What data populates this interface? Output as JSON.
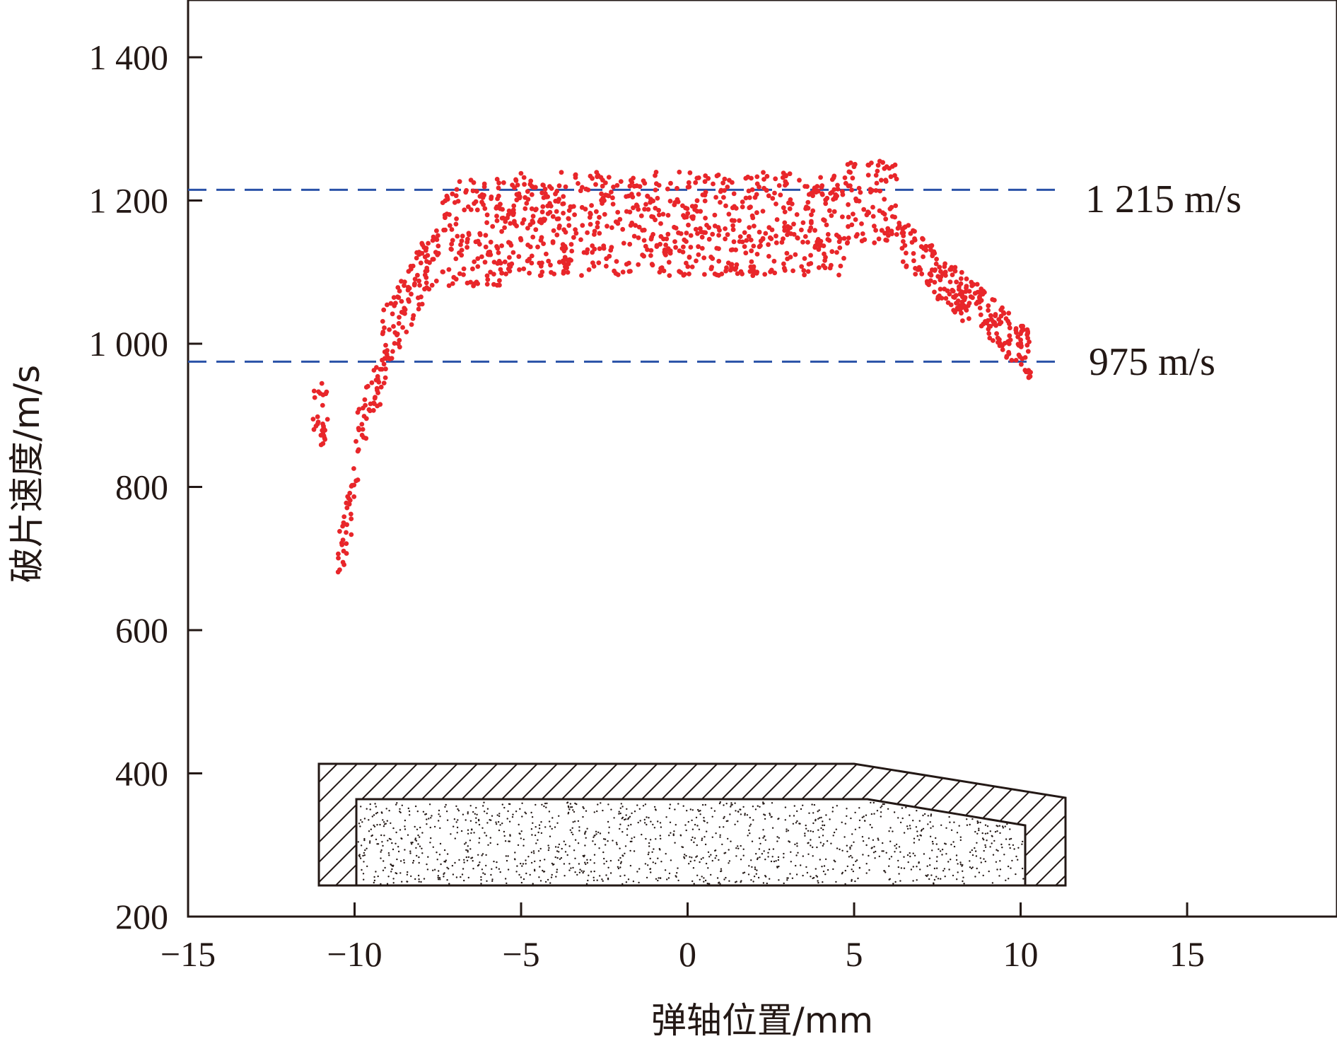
{
  "chart_data": {
    "type": "scatter",
    "title": "",
    "xlabel": "弹轴位置/mm",
    "ylabel": "破片速度/m/s",
    "xlim": [
      -15,
      19.5
    ],
    "ylim": [
      200,
      1480
    ],
    "xticks": [
      -15,
      -10,
      -5,
      0,
      5,
      10,
      15
    ],
    "xtick_labels": [
      "−15",
      "−10",
      "−5",
      "0",
      "5",
      "10",
      "15"
    ],
    "yticks": [
      200,
      400,
      600,
      800,
      1000,
      1200,
      1400
    ],
    "ytick_labels": [
      "200",
      "400",
      "600",
      "800",
      "1 000",
      "1 200",
      "1 400"
    ],
    "grid": false,
    "point_color": "#e8262a",
    "reference_lines": [
      {
        "value": 1215,
        "label": "1 215 m/s",
        "color": "#2a52a8"
      },
      {
        "value": 975,
        "label": "975 m/s",
        "color": "#2a52a8"
      }
    ],
    "point_groups": [
      {
        "x_range": [
          -11.3,
          -10.8
        ],
        "y_range": [
          850,
          945
        ],
        "count": 28
      },
      {
        "x_range": [
          -10.5,
          -9.9
        ],
        "y_range": [
          655,
          850
        ],
        "count": 35
      },
      {
        "x_range": [
          -10.0,
          -9.0
        ],
        "y_range": [
          830,
          1010
        ],
        "count": 45
      },
      {
        "x_range": [
          -9.2,
          -7.5
        ],
        "y_range": [
          950,
          1180
        ],
        "count": 110
      },
      {
        "x_range": [
          -7.5,
          -5.5
        ],
        "y_range": [
          1080,
          1230
        ],
        "count": 140
      },
      {
        "x_range": [
          -5.5,
          4.7
        ],
        "y_range": [
          1095,
          1240
        ],
        "count": 700
      },
      {
        "x_range": [
          4.7,
          6.3
        ],
        "y_range": [
          1140,
          1255
        ],
        "count": 90
      },
      {
        "x_range": [
          6.3,
          8.3
        ],
        "y_range": [
          1030,
          1180
        ],
        "count": 120
      },
      {
        "x_range": [
          8.3,
          10.3
        ],
        "y_range": [
          950,
          1100
        ],
        "count": 130
      }
    ],
    "inset_diagram": "projectile cross-section: hatched casing with stippled charge fill"
  }
}
